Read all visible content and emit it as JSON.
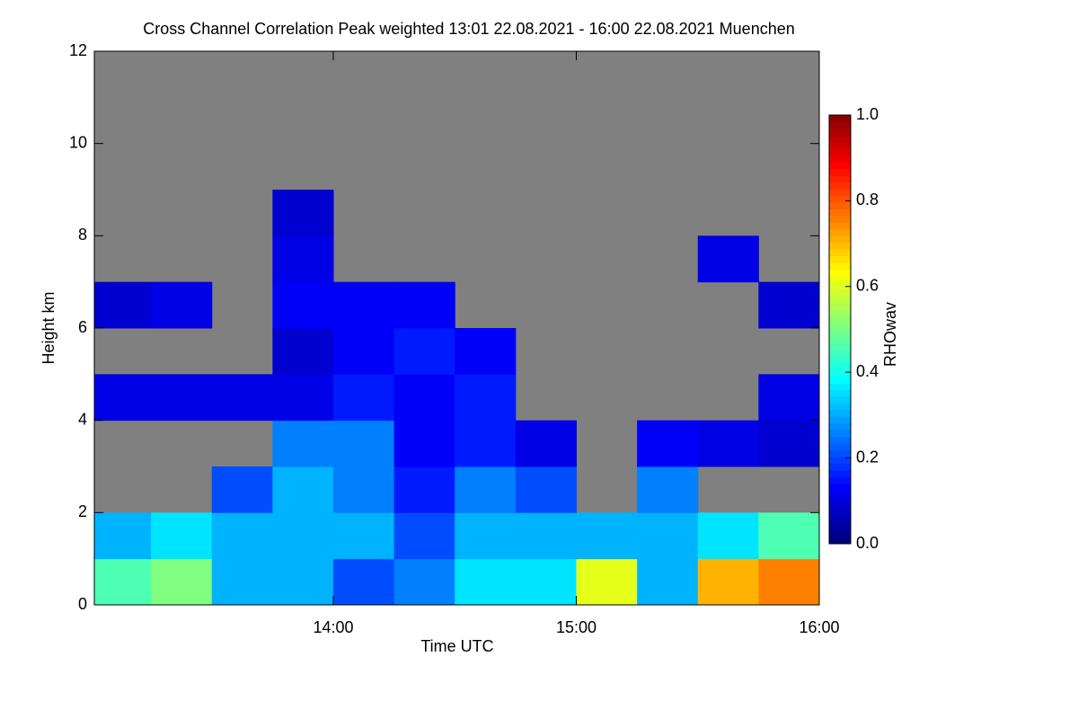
{
  "chart_data": {
    "type": "heatmap",
    "title": "Cross Channel Correlation Peak weighted   13:01 22.08.2021 - 16:00 22.08.2021 Muenchen",
    "xlabel": "Time UTC",
    "ylabel": "Height km",
    "colorbar_label": "RHOwav",
    "xlim": [
      "13:01",
      "16:00"
    ],
    "xticks": [
      "14:00",
      "15:00",
      "16:00"
    ],
    "ylim": [
      0,
      12
    ],
    "yticks": [
      0,
      2,
      4,
      6,
      8,
      10,
      12
    ],
    "zlim": [
      0,
      1
    ],
    "zticks": [
      {
        "value": 0,
        "label": "0.0"
      },
      {
        "value": 0.2,
        "label": "0.2"
      },
      {
        "value": 0.4,
        "label": "0.4"
      },
      {
        "value": 0.6,
        "label": "0.6"
      },
      {
        "value": 0.8,
        "label": "0.8"
      },
      {
        "value": 1,
        "label": "1.0"
      }
    ],
    "colormap": "jet",
    "missing_color": "#808080",
    "x": [
      "13:00",
      "13:15",
      "13:30",
      "13:45",
      "14:00",
      "14:15",
      "14:30",
      "14:45",
      "15:00",
      "15:15",
      "15:30",
      "15:45"
    ],
    "y": [
      0,
      1,
      2,
      3,
      4,
      5,
      6,
      7,
      8,
      9,
      10,
      11
    ],
    "z": [
      [
        0.45,
        0.5,
        0.3,
        0.3,
        0.2,
        0.25,
        0.35,
        0.35,
        0.6,
        0.3,
        0.7,
        0.75
      ],
      [
        0.3,
        0.35,
        0.3,
        0.3,
        0.3,
        0.2,
        0.3,
        0.3,
        0.3,
        0.3,
        0.35,
        0.45
      ],
      [
        null,
        null,
        0.2,
        0.3,
        0.25,
        0.15,
        0.25,
        0.2,
        null,
        0.25,
        null,
        null
      ],
      [
        null,
        null,
        null,
        0.25,
        0.25,
        0.12,
        0.15,
        0.1,
        null,
        0.12,
        0.1,
        0.08
      ],
      [
        0.1,
        0.1,
        0.1,
        0.1,
        0.15,
        0.12,
        0.15,
        null,
        null,
        null,
        null,
        0.1
      ],
      [
        null,
        null,
        null,
        0.08,
        0.12,
        0.15,
        0.12,
        null,
        null,
        null,
        null,
        null
      ],
      [
        0.08,
        0.1,
        null,
        0.12,
        0.12,
        0.12,
        null,
        null,
        null,
        null,
        null,
        0.08
      ],
      [
        null,
        null,
        null,
        0.1,
        null,
        null,
        null,
        null,
        null,
        null,
        0.1,
        null
      ],
      [
        null,
        null,
        null,
        0.08,
        null,
        null,
        null,
        null,
        null,
        null,
        null,
        null
      ],
      [
        null,
        null,
        null,
        null,
        null,
        null,
        null,
        null,
        null,
        null,
        null,
        null
      ],
      [
        null,
        null,
        null,
        null,
        null,
        null,
        null,
        null,
        null,
        null,
        null,
        null
      ],
      [
        null,
        null,
        null,
        null,
        null,
        null,
        null,
        null,
        null,
        null,
        null,
        null
      ]
    ]
  }
}
